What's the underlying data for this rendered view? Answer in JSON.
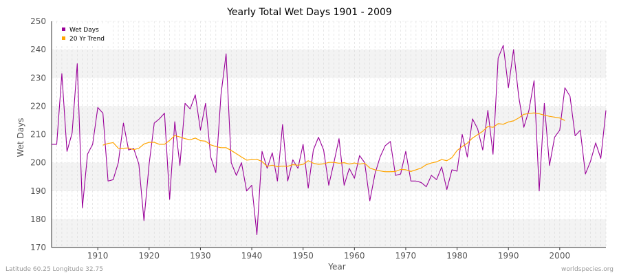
{
  "chart_data": {
    "type": "line",
    "title": "Yearly Total Wet Days 1901 - 2009",
    "xlabel": "Year",
    "ylabel": "Wet Days",
    "xlim": [
      1901,
      2009
    ],
    "ylim": [
      170,
      250
    ],
    "x_ticks": [
      1910,
      1920,
      1930,
      1940,
      1950,
      1960,
      1970,
      1980,
      1990,
      2000
    ],
    "y_ticks": [
      170,
      180,
      190,
      200,
      210,
      220,
      230,
      240,
      250
    ],
    "grid": true,
    "legend_position": "top-left",
    "series": [
      {
        "name": "Wet Days",
        "color": "#990099",
        "start_year": 1901,
        "values": [
          206.5,
          206.5,
          231.5,
          204,
          210.5,
          235,
          184,
          203,
          206.5,
          219.5,
          217.5,
          193.5,
          194,
          200,
          214,
          204.5,
          205,
          199.5,
          179.5,
          199.5,
          214,
          215.5,
          217.5,
          187,
          214.5,
          199,
          221,
          219,
          224,
          211.5,
          221,
          202,
          196.5,
          224,
          238.5,
          200,
          195.5,
          200,
          190,
          192,
          174.5,
          204,
          198,
          203.5,
          193.5,
          213.5,
          193.5,
          201,
          198,
          206.5,
          191,
          204.5,
          209,
          204.5,
          192,
          200,
          208.5,
          192,
          198,
          194.5,
          202.5,
          200,
          186.5,
          196,
          202,
          206,
          207.5,
          195.5,
          196,
          204,
          193.5,
          193.5,
          193,
          191.5,
          195.5,
          194,
          198.5,
          190.5,
          197.5,
          197,
          210,
          202,
          215.5,
          212,
          204.5,
          218.5,
          203,
          237,
          241.5,
          226.5,
          240,
          223.5,
          212.5,
          218.5,
          229,
          190,
          221,
          199,
          209,
          211.5,
          226.5,
          223.5,
          209.5,
          211.5,
          196,
          200.5,
          207,
          201.5,
          218.5
        ]
      },
      {
        "name": "20 Yr Trend",
        "color": "#ffa500",
        "start_year": 1911,
        "values": [
          206.2,
          206.8,
          207.1,
          205.1,
          205.1,
          205.2,
          204.6,
          205.1,
          206.6,
          207.2,
          207.2,
          206.5,
          206.5,
          207.9,
          209.6,
          209.1,
          208.5,
          208.1,
          208.7,
          207.8,
          207.6,
          206.3,
          205.7,
          205.3,
          205.3,
          204.3,
          203.2,
          202,
          200.9,
          201.1,
          201.2,
          200.4,
          198.7,
          199.1,
          198.6,
          198.8,
          198.7,
          199.3,
          199.1,
          199.4,
          200.7,
          199.8,
          199.4,
          199.6,
          200.1,
          200.1,
          199.8,
          200,
          199.5,
          199.9,
          199.5,
          199.8,
          198.1,
          197.5,
          197.1,
          196.8,
          196.8,
          196.9,
          197.6,
          197.5,
          196.9,
          197.5,
          198.1,
          199.3,
          199.9,
          200.3,
          201.1,
          200.7,
          201.8,
          204.3,
          205.7,
          206.9,
          208.7,
          209.9,
          211.1,
          212.8,
          212.5,
          213.8,
          213.6,
          214.4,
          214.8,
          215.8,
          217.1,
          217.4,
          217.6,
          217.3,
          216.8,
          216.4,
          216.1,
          215.8,
          214.9
        ]
      }
    ]
  },
  "footer": {
    "left": "Latitude 60.25 Longitude 32.75",
    "right": "worldspecies.org"
  }
}
